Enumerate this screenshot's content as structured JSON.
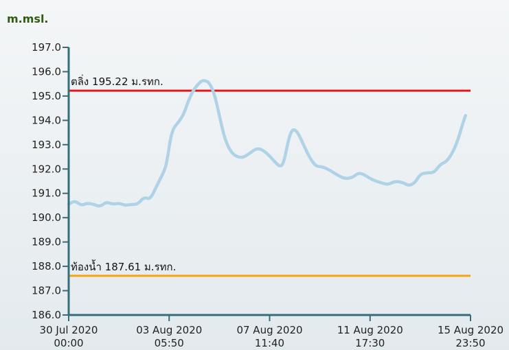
{
  "chart_data": {
    "type": "line",
    "unit_label": "m.msl.",
    "ylim": [
      186.0,
      197.0
    ],
    "y_ticks": [
      "197.0",
      "196.0",
      "195.0",
      "194.0",
      "193.0",
      "192.0",
      "191.0",
      "190.0",
      "189.0",
      "188.0",
      "187.0",
      "186.0"
    ],
    "x_ticks": [
      {
        "line1": "30 Jul 2020",
        "line2": "00:00"
      },
      {
        "line1": "03 Aug 2020",
        "line2": "05:50"
      },
      {
        "line1": "07 Aug 2020",
        "line2": "11:40"
      },
      {
        "line1": "11 Aug 2020",
        "line2": "17:30"
      },
      {
        "line1": "15 Aug 2020",
        "line2": "23:50"
      }
    ],
    "reference_lines": [
      {
        "label": "ตลิ่ง 195.22 ม.รทก.",
        "value": 195.22,
        "color": "#e8141b"
      },
      {
        "label": "ท้องน้ำ 187.61 ม.รทก.",
        "value": 187.61,
        "color": "#f5a30f"
      }
    ],
    "series": [
      {
        "color": "#afd2e7",
        "points": [
          [
            0.0,
            190.55
          ],
          [
            0.25,
            190.7
          ],
          [
            0.5,
            190.5
          ],
          [
            0.75,
            190.6
          ],
          [
            1.0,
            190.55
          ],
          [
            1.25,
            190.45
          ],
          [
            1.5,
            190.65
          ],
          [
            1.75,
            190.55
          ],
          [
            2.0,
            190.6
          ],
          [
            2.25,
            190.5
          ],
          [
            2.5,
            190.55
          ],
          [
            2.75,
            190.55
          ],
          [
            3.0,
            190.85
          ],
          [
            3.25,
            190.75
          ],
          [
            3.5,
            191.3
          ],
          [
            3.75,
            191.8
          ],
          [
            3.9,
            192.2
          ],
          [
            4.1,
            193.6
          ],
          [
            4.4,
            193.95
          ],
          [
            4.6,
            194.3
          ],
          [
            4.8,
            194.9
          ],
          [
            5.0,
            195.3
          ],
          [
            5.25,
            195.6
          ],
          [
            5.4,
            195.65
          ],
          [
            5.6,
            195.55
          ],
          [
            5.8,
            195.1
          ],
          [
            6.0,
            194.2
          ],
          [
            6.2,
            193.3
          ],
          [
            6.4,
            192.8
          ],
          [
            6.6,
            192.55
          ],
          [
            6.9,
            192.45
          ],
          [
            7.15,
            192.6
          ],
          [
            7.4,
            192.8
          ],
          [
            7.6,
            192.85
          ],
          [
            7.9,
            192.65
          ],
          [
            8.2,
            192.3
          ],
          [
            8.4,
            192.1
          ],
          [
            8.55,
            192.2
          ],
          [
            8.75,
            193.2
          ],
          [
            8.9,
            193.65
          ],
          [
            9.1,
            193.55
          ],
          [
            9.35,
            193.0
          ],
          [
            9.6,
            192.45
          ],
          [
            9.85,
            192.1
          ],
          [
            10.1,
            192.1
          ],
          [
            10.4,
            191.95
          ],
          [
            10.7,
            191.75
          ],
          [
            11.0,
            191.6
          ],
          [
            11.3,
            191.65
          ],
          [
            11.55,
            191.85
          ],
          [
            11.8,
            191.75
          ],
          [
            12.1,
            191.55
          ],
          [
            12.4,
            191.45
          ],
          [
            12.7,
            191.35
          ],
          [
            13.0,
            191.5
          ],
          [
            13.3,
            191.45
          ],
          [
            13.55,
            191.3
          ],
          [
            13.8,
            191.45
          ],
          [
            14.0,
            191.8
          ],
          [
            14.3,
            191.85
          ],
          [
            14.55,
            191.85
          ],
          [
            14.8,
            192.2
          ],
          [
            15.05,
            192.3
          ],
          [
            15.3,
            192.7
          ],
          [
            15.5,
            193.2
          ],
          [
            15.7,
            193.9
          ],
          [
            15.8,
            194.2
          ]
        ]
      }
    ]
  }
}
